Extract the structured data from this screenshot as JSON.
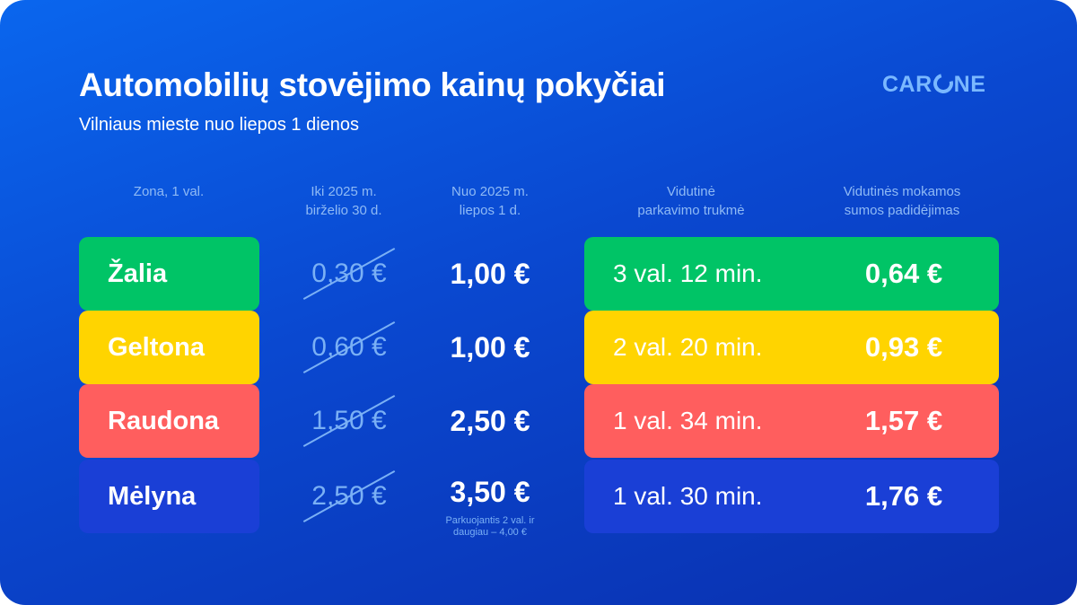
{
  "header": {
    "title": "Automobilių stovėjimo kainų pokyčiai",
    "subtitle": "Vilniaus mieste nuo liepos 1 dienos",
    "logo": "CARONE"
  },
  "columns": {
    "zone": "Zona, 1 val.",
    "old": [
      "Iki 2025 m.",
      "birželio 30 d."
    ],
    "new": [
      "Nuo 2025 m.",
      "liepos 1 d."
    ],
    "duration": [
      "Vidutinė",
      "parkavimo trukmė"
    ],
    "increase": [
      "Vidutinės mokamos",
      "sumos padidėjimas"
    ]
  },
  "rows": [
    {
      "zone": "Žalia",
      "old": "0,30 €",
      "new": "1,00 €",
      "duration": "3 val. 12 min.",
      "increase": "0,64 €",
      "color": "#00c466"
    },
    {
      "zone": "Geltona",
      "old": "0,60 €",
      "new": "1,00 €",
      "duration": "2 val. 20 min.",
      "increase": "0,93 €",
      "color": "#ffd400"
    },
    {
      "zone": "Raudona",
      "old": "1,50 €",
      "new": "2,50 €",
      "duration": "1 val. 34 min.",
      "increase": "1,57 €",
      "color": "#ff5e5e"
    },
    {
      "zone": "Mėlyna",
      "old": "2,50 €",
      "new": "3,50 €",
      "duration": "1 val. 30 min.",
      "increase": "1,76 €",
      "color": "#1a3fd6"
    }
  ],
  "note": "Parkuojantis 2 val. ir daugiau – 4,00 €"
}
